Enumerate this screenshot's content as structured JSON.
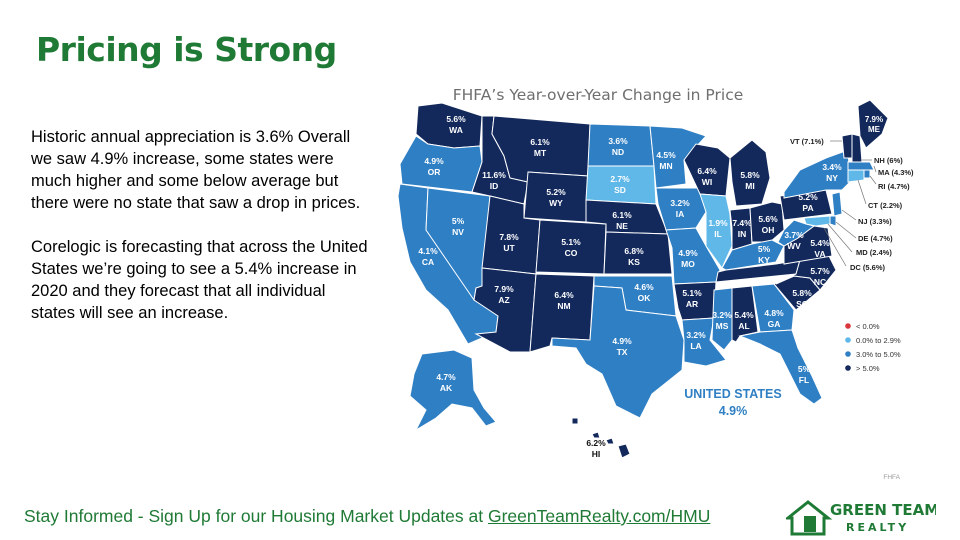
{
  "slide": {
    "title": "Pricing is Strong",
    "paragraphs": [
      "Historic annual appreciation is 3.6% Overall we saw 4.9% increase, some states were much higher and some below average but there were no state that saw a drop in prices.",
      "Corelogic is forecasting that across the United States we’re going to see a 5.4% increase in 2020 and they forecast that all individual states will see an increase."
    ],
    "footer_text": "Stay Informed - Sign Up for our Housing Market Updates at ",
    "footer_link": "GreenTeamRealty.com/HMU",
    "logo_line1": "GREEN TEAM",
    "logo_line2": "REALTY"
  },
  "map": {
    "title": "FHFA’s Year-over-Year Change in Price",
    "source": "FHFA",
    "us_label": "UNITED STATES",
    "us_value": "4.9%",
    "colors": {
      "neg": "#d9363e",
      "light": "#5fb8e8",
      "mid": "#2f7fc4",
      "dark": "#13295c",
      "label_light": "#ffffff"
    },
    "legend": [
      {
        "label": "< 0.0%",
        "cat": "neg"
      },
      {
        "label": "0.0% to 2.9%",
        "cat": "light"
      },
      {
        "label": "3.0% to 5.0%",
        "cat": "mid"
      },
      {
        "label": "> 5.0%",
        "cat": "dark"
      }
    ],
    "states": [
      {
        "abbr": "WA",
        "value": "5.6%",
        "cat": "dark"
      },
      {
        "abbr": "OR",
        "value": "4.9%",
        "cat": "mid"
      },
      {
        "abbr": "CA",
        "value": "4.1%",
        "cat": "mid"
      },
      {
        "abbr": "NV",
        "value": "5%",
        "cat": "mid"
      },
      {
        "abbr": "ID",
        "value": "11.6%",
        "cat": "dark"
      },
      {
        "abbr": "MT",
        "value": "6.1%",
        "cat": "dark"
      },
      {
        "abbr": "WY",
        "value": "5.2%",
        "cat": "dark"
      },
      {
        "abbr": "UT",
        "value": "7.8%",
        "cat": "dark"
      },
      {
        "abbr": "CO",
        "value": "5.1%",
        "cat": "dark"
      },
      {
        "abbr": "AZ",
        "value": "7.9%",
        "cat": "dark"
      },
      {
        "abbr": "NM",
        "value": "6.4%",
        "cat": "dark"
      },
      {
        "abbr": "ND",
        "value": "3.6%",
        "cat": "mid"
      },
      {
        "abbr": "SD",
        "value": "2.7%",
        "cat": "light"
      },
      {
        "abbr": "NE",
        "value": "6.1%",
        "cat": "dark"
      },
      {
        "abbr": "KS",
        "value": "6.8%",
        "cat": "dark"
      },
      {
        "abbr": "OK",
        "value": "4.6%",
        "cat": "mid"
      },
      {
        "abbr": "TX",
        "value": "4.9%",
        "cat": "mid"
      },
      {
        "abbr": "MN",
        "value": "4.5%",
        "cat": "mid"
      },
      {
        "abbr": "IA",
        "value": "3.2%",
        "cat": "mid"
      },
      {
        "abbr": "MO",
        "value": "4.9%",
        "cat": "mid"
      },
      {
        "abbr": "AR",
        "value": "5.1%",
        "cat": "dark"
      },
      {
        "abbr": "LA",
        "value": "3.2%",
        "cat": "mid"
      },
      {
        "abbr": "WI",
        "value": "6.4%",
        "cat": "dark"
      },
      {
        "abbr": "IL",
        "value": "1.9%",
        "cat": "light"
      },
      {
        "abbr": "MI",
        "value": "5.8%",
        "cat": "dark"
      },
      {
        "abbr": "IN",
        "value": "7.4%",
        "cat": "dark"
      },
      {
        "abbr": "OH",
        "value": "5.6%",
        "cat": "dark"
      },
      {
        "abbr": "KY",
        "value": "5%",
        "cat": "mid"
      },
      {
        "abbr": "TN",
        "value": "6.3%",
        "cat": "dark"
      },
      {
        "abbr": "MS",
        "value": "3.2%",
        "cat": "mid"
      },
      {
        "abbr": "AL",
        "value": "5.4%",
        "cat": "dark"
      },
      {
        "abbr": "GA",
        "value": "4.8%",
        "cat": "mid"
      },
      {
        "abbr": "FL",
        "value": "5%",
        "cat": "mid"
      },
      {
        "abbr": "SC",
        "value": "5.8%",
        "cat": "dark"
      },
      {
        "abbr": "NC",
        "value": "5.7%",
        "cat": "dark"
      },
      {
        "abbr": "VA",
        "value": "5.4%",
        "cat": "dark"
      },
      {
        "abbr": "WV",
        "value": "3.7%",
        "cat": "mid"
      },
      {
        "abbr": "PA",
        "value": "5.2%",
        "cat": "dark"
      },
      {
        "abbr": "NY",
        "value": "3.4%",
        "cat": "mid"
      },
      {
        "abbr": "ME",
        "value": "7.9%",
        "cat": "dark"
      },
      {
        "abbr": "AK",
        "value": "4.7%",
        "cat": "mid"
      },
      {
        "abbr": "HI",
        "value": "6.2%",
        "cat": "dark"
      }
    ],
    "callouts": [
      {
        "label": "VT (7.1%)",
        "cat": "dark"
      },
      {
        "label": "NH (6%)",
        "cat": "dark"
      },
      {
        "label": "MA (4.3%)",
        "cat": "mid"
      },
      {
        "label": "RI (4.7%)",
        "cat": "mid"
      },
      {
        "label": "CT (2.2%)",
        "cat": "light"
      },
      {
        "label": "NJ (3.3%)",
        "cat": "mid"
      },
      {
        "label": "DE (4.7%)",
        "cat": "mid"
      },
      {
        "label": "MD (2.4%)",
        "cat": "light"
      },
      {
        "label": "DC (5.6%)",
        "cat": "dark"
      }
    ]
  }
}
